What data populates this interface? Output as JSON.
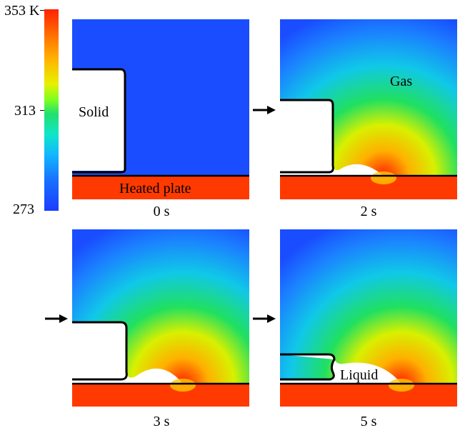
{
  "colorbar": {
    "ticks": [
      "353 K",
      "313",
      "273"
    ],
    "colors": [
      "#ff2200",
      "#ffb400",
      "#7cff20",
      "#10e6c8",
      "#1a3cff"
    ]
  },
  "panels": [
    {
      "time": "0 s",
      "labels": {
        "solid": "Solid",
        "plate": "Heated plate"
      }
    },
    {
      "time": "2 s",
      "labels": {
        "gas": "Gas"
      }
    },
    {
      "time": "3 s",
      "labels": {}
    },
    {
      "time": "5 s",
      "labels": {
        "liquid": "Liquid"
      }
    }
  ],
  "colors": {
    "cold": "#1a4dff",
    "plate": "#ff3a00",
    "hot": "#ff1e00",
    "outline": "#000000"
  }
}
